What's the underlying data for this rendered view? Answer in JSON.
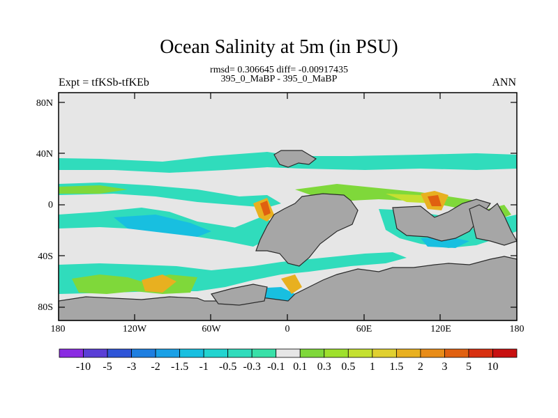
{
  "title": "Ocean Salinity at 5m (in PSU)",
  "stats": "rmsd= 0.306645 diff= -0.00917435",
  "case": "395_0_MaBP - 395_0_MaBP",
  "expt": "Expt = tfKSb-tfKEb",
  "season": "ANN",
  "lat_labels": [
    "80N",
    "40N",
    "0",
    "40S",
    "80S"
  ],
  "lon_labels": [
    "180",
    "120W",
    "60W",
    "0",
    "60E",
    "120E",
    "180"
  ],
  "colorbar": {
    "labels": [
      "-10",
      "-5",
      "-3",
      "-2",
      "-1.5",
      "-1",
      "-0.5",
      "-0.3",
      "-0.1",
      "0.1",
      "0.3",
      "0.5",
      "1",
      "1.5",
      "2",
      "3",
      "5",
      "10"
    ],
    "colors": [
      "#8a2be2",
      "#5a3ed6",
      "#2f55d8",
      "#1e7ee0",
      "#1aa0e6",
      "#18bfe0",
      "#22d4d0",
      "#30dcbc",
      "#39e0a8",
      "#e6e6e6",
      "#7fd83a",
      "#9ee02c",
      "#c4e030",
      "#e0d030",
      "#e8b020",
      "#e88c18",
      "#e06010",
      "#d83010",
      "#c81010"
    ]
  },
  "map_colors": {
    "ocean_neutral": "#e6e6e6",
    "land": "#a6a6a6",
    "coast": "#2a2a2a",
    "fresh_light": "#30dcbc",
    "fresh_mid": "#18bfe0",
    "salty_light": "#7fd83a",
    "salty_mid": "#c4e030",
    "salty_high": "#e8b020",
    "salty_max": "#e06010"
  }
}
